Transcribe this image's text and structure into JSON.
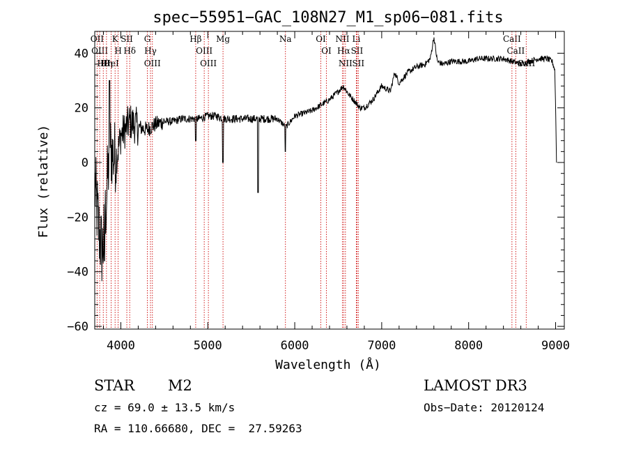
{
  "chart_data": {
    "type": "line",
    "title": "spec−55951−GAC_108N27_M1_sp06−081.fits",
    "xlabel": "Wavelength (Å)",
    "ylabel": "Flux (relative)",
    "xlim": [
      3700,
      9100
    ],
    "ylim": [
      -61,
      48
    ],
    "x_ticks": [
      4000,
      5000,
      6000,
      7000,
      8000,
      9000
    ],
    "x_tick_labels": [
      "4000",
      "5000",
      "6000",
      "7000",
      "8000",
      "9000"
    ],
    "y_ticks": [
      -60,
      -40,
      -20,
      0,
      20,
      40
    ],
    "y_tick_labels": [
      "−60",
      "−40",
      "−20",
      "0",
      "20",
      "40"
    ],
    "line_color": "#cc0000",
    "spectrum_color": "#000000",
    "spectral_lines": [
      {
        "label": "Hθ",
        "wave": 3798
      },
      {
        "label": "OII",
        "wave": 3727
      },
      {
        "label": "OIII",
        "wave": 3757
      },
      {
        "label": "Hη",
        "wave": 3835
      },
      {
        "label": "K",
        "wave": 3934
      },
      {
        "label": "HeI",
        "wave": 3889
      },
      {
        "label": "H",
        "wave": 3969
      },
      {
        "label": "Hδ",
        "wave": 4102
      },
      {
        "label": "SII",
        "wave": 4069
      },
      {
        "label": "OIII",
        "wave": 4363
      },
      {
        "label": "Hγ",
        "wave": 4341
      },
      {
        "label": "G",
        "wave": 4305
      },
      {
        "label": "Hβ",
        "wave": 4861
      },
      {
        "label": "OIII",
        "wave": 4959
      },
      {
        "label": "OIII",
        "wave": 5007
      },
      {
        "label": "Mg",
        "wave": 5175
      },
      {
        "label": "Na",
        "wave": 5893
      },
      {
        "label": "OI",
        "wave": 6300
      },
      {
        "label": "OI",
        "wave": 6364
      },
      {
        "label": "Hα",
        "wave": 6563
      },
      {
        "label": "NII",
        "wave": 6548
      },
      {
        "label": "NII",
        "wave": 6583
      },
      {
        "label": "Li",
        "wave": 6708
      },
      {
        "label": "SII",
        "wave": 6716
      },
      {
        "label": "SII",
        "wave": 6731
      },
      {
        "label": "CaII",
        "wave": 8498
      },
      {
        "label": "CaII",
        "wave": 8542
      },
      {
        "label": "CaII",
        "wave": 8662
      }
    ],
    "spectrum_anchors": {
      "wave": [
        3700,
        3720,
        3750,
        3780,
        3800,
        3820,
        3850,
        3880,
        3920,
        3960,
        4000,
        4050,
        4100,
        4150,
        4200,
        4300,
        4400,
        4500,
        4600,
        4700,
        4800,
        4900,
        5000,
        5100,
        5180,
        5250,
        5400,
        5600,
        5800,
        5900,
        6000,
        6100,
        6200,
        6300,
        6400,
        6500,
        6560,
        6620,
        6700,
        6750,
        6800,
        6900,
        7000,
        7100,
        7150,
        7200,
        7300,
        7400,
        7500,
        7560,
        7600,
        7640,
        7700,
        7800,
        7900,
        8000,
        8100,
        8200,
        8300,
        8400,
        8500,
        8600,
        8700,
        8800,
        8900,
        8960,
        8990,
        9000,
        9010
      ],
      "flux": [
        -8,
        -15,
        -25,
        -32,
        -30,
        -20,
        -5,
        5,
        2,
        3,
        10,
        12,
        15,
        14,
        13,
        12,
        14,
        15,
        15,
        16,
        16,
        16,
        17,
        17,
        16,
        16,
        16,
        16,
        16,
        13,
        17,
        18,
        19,
        21,
        23,
        26,
        28,
        25,
        22,
        20,
        20,
        23,
        28,
        26,
        33,
        29,
        33,
        35,
        36,
        38,
        46,
        37,
        36,
        37,
        37,
        37,
        38,
        38,
        38,
        38,
        37,
        36,
        37,
        38,
        38,
        37,
        34,
        20,
        0
      ]
    },
    "annotations": {
      "object_class": "STAR",
      "subclass": "M2",
      "survey": "LAMOST DR3",
      "cz": "cz = 69.0 ± 13.5 km/s",
      "obs_date": "Obs−Date: 20120124",
      "coords": "RA = 110.66680, DEC =  27.59263"
    }
  }
}
